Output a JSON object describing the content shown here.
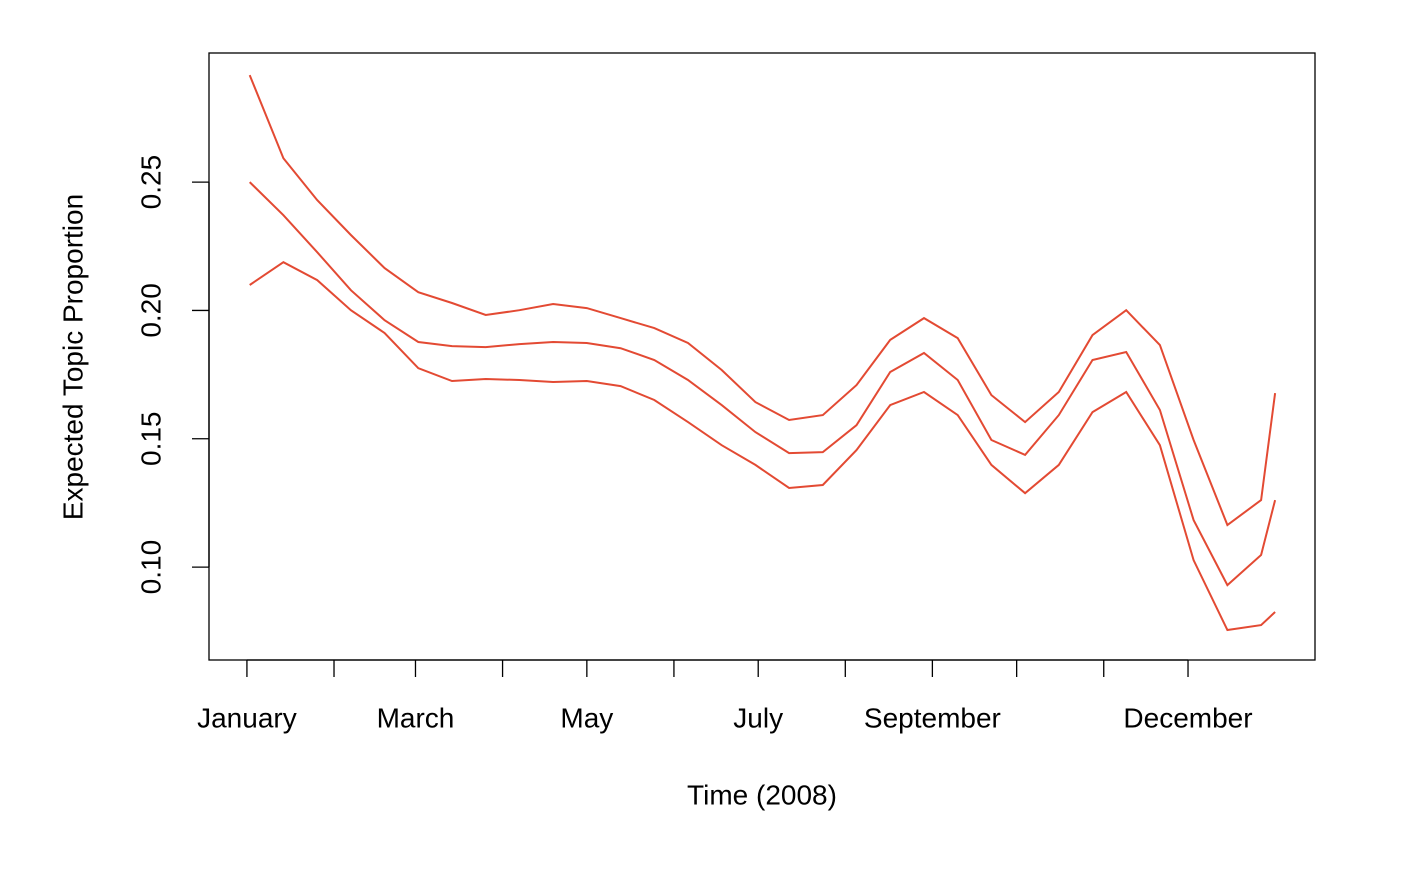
{
  "chart_data": {
    "type": "line",
    "xlabel": "Time (2008)",
    "ylabel": "Expected Topic Proportion",
    "x": [
      1,
      13,
      25,
      37,
      49,
      61,
      73,
      85,
      97,
      109,
      121,
      133,
      145,
      157,
      169,
      181,
      193,
      205,
      217,
      229,
      241,
      253,
      265,
      277,
      289,
      301,
      313,
      325,
      337,
      349,
      361,
      366
    ],
    "series": [
      {
        "color": "#e34a33",
        "values": [
          0.2917,
          0.2593,
          0.243,
          0.2294,
          0.2165,
          0.2071,
          0.2029,
          0.1982,
          0.2001,
          0.2025,
          0.2009,
          0.197,
          0.1931,
          0.1873,
          0.1768,
          0.1643,
          0.1573,
          0.1592,
          0.1709,
          0.1885,
          0.197,
          0.1892,
          0.167,
          0.1565,
          0.1682,
          0.1904,
          0.2001,
          0.1865,
          0.1495,
          0.1164,
          0.1261,
          0.1678
        ]
      },
      {
        "color": "#e34a33",
        "values": [
          0.25,
          0.2371,
          0.2227,
          0.2079,
          0.1962,
          0.1877,
          0.1861,
          0.1857,
          0.1869,
          0.1877,
          0.1873,
          0.1853,
          0.1807,
          0.1729,
          0.1631,
          0.1526,
          0.1444,
          0.1448,
          0.1553,
          0.176,
          0.1834,
          0.1729,
          0.1495,
          0.1437,
          0.1592,
          0.1807,
          0.1838,
          0.1612,
          0.1183,
          0.093,
          0.1047,
          0.1261
        ]
      },
      {
        "color": "#e34a33",
        "values": [
          0.2099,
          0.2188,
          0.2118,
          0.2001,
          0.1912,
          0.1775,
          0.1725,
          0.1733,
          0.1729,
          0.1721,
          0.1725,
          0.1705,
          0.1651,
          0.1565,
          0.1475,
          0.1398,
          0.1308,
          0.132,
          0.1456,
          0.1631,
          0.1682,
          0.1592,
          0.1398,
          0.1288,
          0.1398,
          0.1604,
          0.1682,
          0.1475,
          0.1027,
          0.0755,
          0.0774,
          0.0825
        ]
      }
    ],
    "xlim": [
      -13.5,
      380.2
    ],
    "xticks": [
      {
        "value": 0,
        "label": "January"
      },
      {
        "value": 31,
        "label": null
      },
      {
        "value": 60,
        "label": "March"
      },
      {
        "value": 91,
        "label": null
      },
      {
        "value": 121,
        "label": "May"
      },
      {
        "value": 152,
        "label": null
      },
      {
        "value": 182,
        "label": "July"
      },
      {
        "value": 213,
        "label": null
      },
      {
        "value": 244,
        "label": "September"
      },
      {
        "value": 274,
        "label": null
      },
      {
        "value": 305,
        "label": null
      },
      {
        "value": 335,
        "label": "December"
      }
    ],
    "ylim": [
      0.0638,
      0.3003
    ],
    "yticks": [
      {
        "value": 0.1,
        "label": "0.10"
      },
      0.15,
      {
        "value": 0.2,
        "label": "0.20"
      },
      0.25
    ],
    "grid": false
  }
}
